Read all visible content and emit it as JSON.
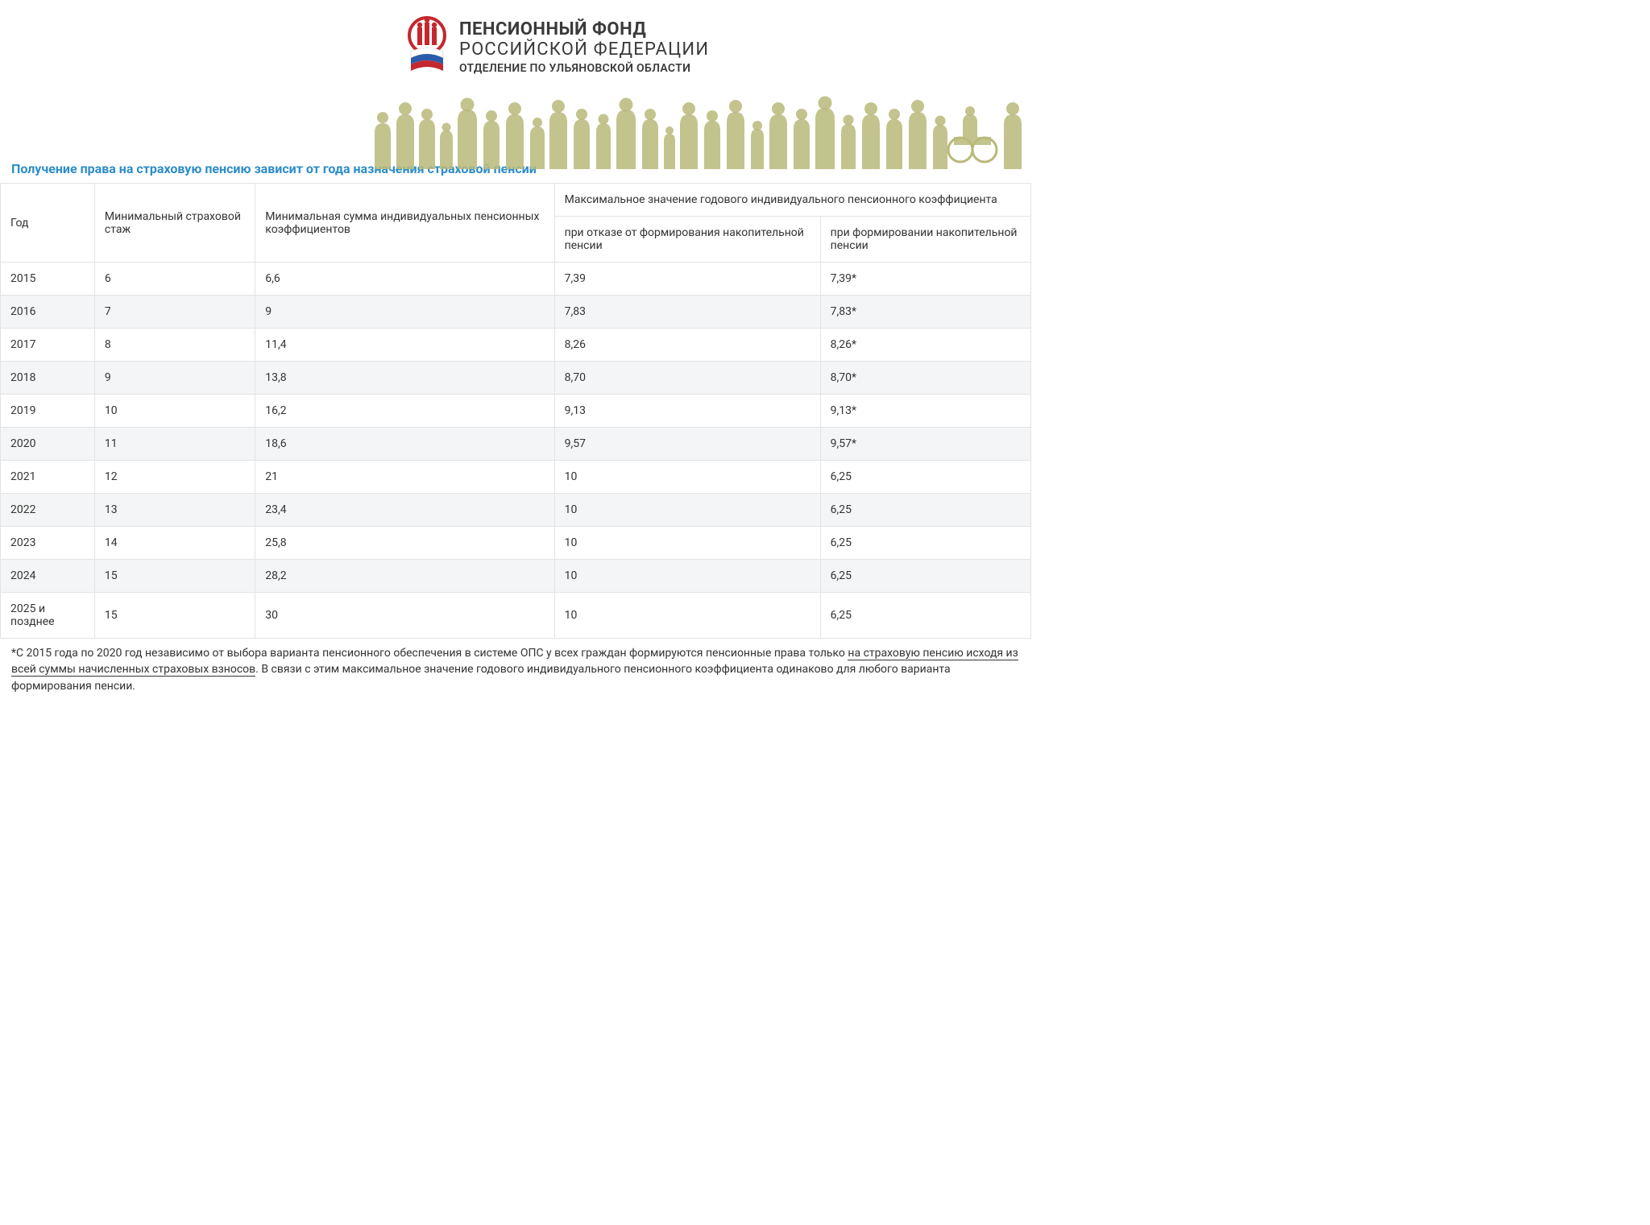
{
  "header": {
    "line1": "ПЕНСИОННЫЙ ФОНД",
    "line2": "РОССИЙСКОЙ ФЕДЕРАЦИИ",
    "line3": "ОТДЕЛЕНИЕ ПО УЛЬЯНОВСКОЙ ОБЛАСТИ"
  },
  "title": "Получение права на страховую пенсию зависит от года назначения страховой пенсии",
  "table": {
    "columns": {
      "year": "Год",
      "min_stazh": "Минимальный страховой стаж",
      "min_coef": "Минимальная сумма индивидуальных пенсионных коэффициентов",
      "max_header": "Максимальное значение годового индивидуального пенсионного коэффициента",
      "max_refuse": "при отказе от формирования накопительной пенсии",
      "max_form": "при формировании накопительной пенсии"
    },
    "rows": [
      {
        "year": "2015",
        "stazh": "6",
        "coef": "6,6",
        "refuse": "7,39",
        "form": "7,39*"
      },
      {
        "year": "2016",
        "stazh": "7",
        "coef": "9",
        "refuse": "7,83",
        "form": "7,83*"
      },
      {
        "year": "2017",
        "stazh": "8",
        "coef": "11,4",
        "refuse": "8,26",
        "form": "8,26*"
      },
      {
        "year": "2018",
        "stazh": "9",
        "coef": "13,8",
        "refuse": "8,70",
        "form": "8,70*"
      },
      {
        "year": "2019",
        "stazh": "10",
        "coef": "16,2",
        "refuse": "9,13",
        "form": "9,13*"
      },
      {
        "year": "2020",
        "stazh": "11",
        "coef": "18,6",
        "refuse": "9,57",
        "form": "9,57*"
      },
      {
        "year": "2021",
        "stazh": "12",
        "coef": "21",
        "refuse": "10",
        "form": "6,25"
      },
      {
        "year": "2022",
        "stazh": "13",
        "coef": "23,4",
        "refuse": "10",
        "form": "6,25"
      },
      {
        "year": "2023",
        "stazh": "14",
        "coef": "25,8",
        "refuse": "10",
        "form": "6,25"
      },
      {
        "year": "2024",
        "stazh": "15",
        "coef": "28,2",
        "refuse": "10",
        "form": "6,25"
      },
      {
        "year": "2025 и позднее",
        "stazh": "15",
        "coef": "30",
        "refuse": "10",
        "form": "6,25"
      }
    ]
  },
  "footnote": {
    "lead": "*С 2015 года по 2020 год независимо от выбора варианта пенсионного обеспечения в системе ОПС у всех граждан формируются пенсионные права только ",
    "underlined": "на страховую пенсию исходя из всей суммы начисленных страховых взносов",
    "tail": ". В связи с этим максимальное значение годового индивидуального пенсионного коэффициента одинаково для любого варианта формирования пенсии."
  },
  "style": {
    "title_color": "#2d8dc9",
    "border_color": "#e3e3e3",
    "row_alt_bg": "#f4f5f6",
    "text_color": "#333333",
    "logo_red": "#c4272d",
    "flag_blue": "#2a5caa",
    "silhouette_fill": "#b9b87a"
  }
}
